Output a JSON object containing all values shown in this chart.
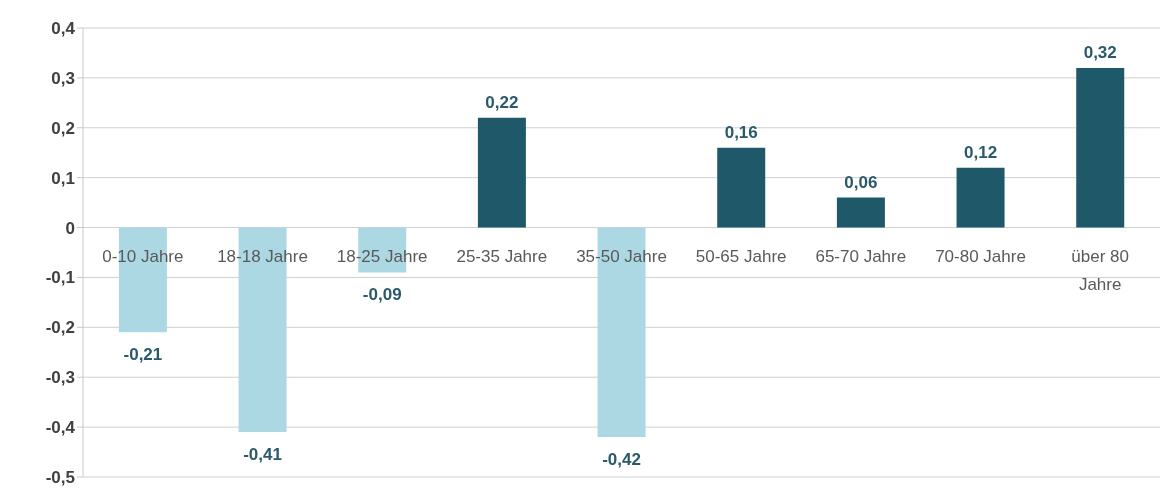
{
  "chart_data": {
    "type": "bar",
    "categories": [
      "0-10 Jahre",
      "18-18 Jahre",
      "18-25 Jahre",
      "25-35 Jahre",
      "35-50 Jahre",
      "50-65 Jahre",
      "65-70 Jahre",
      "70-80 Jahre",
      "über 80 Jahre"
    ],
    "values": [
      -0.21,
      -0.41,
      -0.09,
      0.22,
      -0.42,
      0.16,
      0.06,
      0.12,
      0.32
    ],
    "colors": [
      "#acd8e4",
      "#acd8e4",
      "#acd8e4",
      "#1f5868",
      "#acd8e4",
      "#1f5868",
      "#1f5868",
      "#1f5868",
      "#1f5868"
    ],
    "value_labels": [
      "-0,21",
      "-0,41",
      "-0,09",
      "0,22",
      "-0,42",
      "0,16",
      "0,06",
      "0,12",
      "0,32"
    ],
    "ylim": [
      -0.5,
      0.4
    ],
    "yticks": [
      {
        "value": 0.4,
        "label": "0,4"
      },
      {
        "value": 0.3,
        "label": "0,3"
      },
      {
        "value": 0.2,
        "label": "0,2"
      },
      {
        "value": 0.1,
        "label": "0,1"
      },
      0,
      {
        "value": -0.1,
        "label": "-0,1"
      },
      {
        "value": -0.2,
        "label": "-0,2"
      },
      {
        "value": -0.3,
        "label": "-0,3"
      },
      {
        "value": -0.4,
        "label": "-0,4"
      },
      {
        "value": -0.5,
        "label": "-0,5"
      }
    ],
    "grid": "y"
  }
}
